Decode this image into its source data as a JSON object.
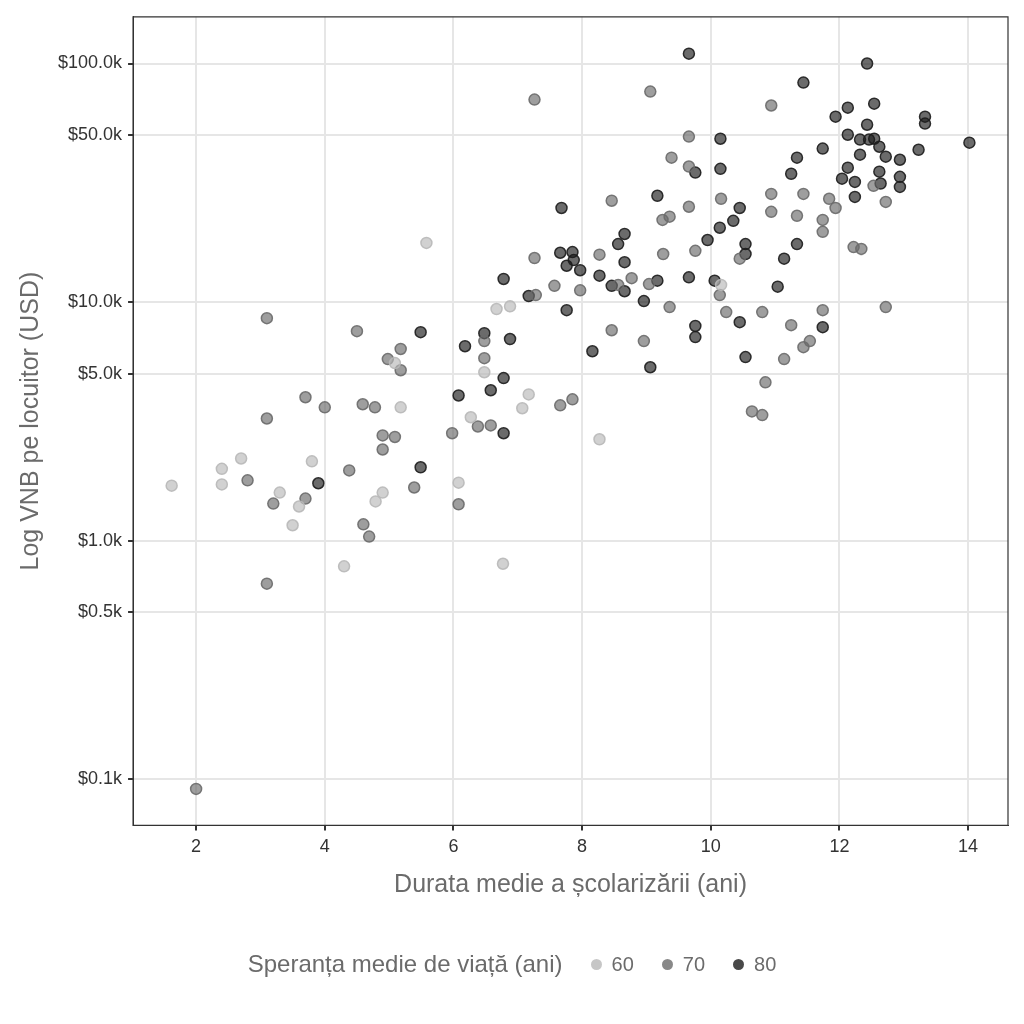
{
  "chart_data": {
    "type": "scatter",
    "xlabel": "Durata medie a școlarizării (ani)",
    "ylabel": "Log VNB pe locuitor (USD)",
    "legend_title": "Speranța medie de viață (ani)",
    "legend": "bottom",
    "grid": true,
    "marker": "circle",
    "log": "y",
    "xlim": [
      1.02,
      14.62
    ],
    "xticks": [
      2,
      4,
      6,
      8,
      10,
      12,
      14
    ],
    "ylim": [
      64,
      157000
    ],
    "yticks": [
      {
        "value": 100,
        "label": "$0.1k"
      },
      {
        "value": 500,
        "label": "$0.5k"
      },
      {
        "value": 1000,
        "label": "$1.0k"
      },
      {
        "value": 5000,
        "label": "$5.0k"
      },
      {
        "value": 10000,
        "label": "$10.0k"
      },
      {
        "value": 50000,
        "label": "$50.0k"
      },
      {
        "value": 100000,
        "label": "$100.0k"
      }
    ],
    "series": [
      {
        "name": "60",
        "color": "#b8b8b8",
        "x": [
          1.62,
          2.4,
          2.4,
          2.7,
          3.3,
          3.5,
          3.6,
          3.8,
          4.3,
          5.58,
          5.09,
          5.18,
          4.9,
          4.79,
          6.08,
          6.77,
          6.48,
          6.67,
          6.88,
          7.17,
          7.07,
          6.27,
          8.27,
          10.16
        ],
        "values": [
          1700,
          2000,
          1720,
          2210,
          1590,
          1160,
          1390,
          2150,
          780,
          17700,
          5550,
          3620,
          1590,
          1460,
          1750,
          800,
          5080,
          9350,
          9600,
          4100,
          3590,
          3290,
          2660,
          11800
        ]
      },
      {
        "name": "70",
        "color": "#6a6a6a",
        "x": [
          2.0,
          2.8,
          3.1,
          3.1,
          3.1,
          3.2,
          3.7,
          3.7,
          4.0,
          4.38,
          4.5,
          4.6,
          4.69,
          4.59,
          4.78,
          5.18,
          4.98,
          5.18,
          5.98,
          4.9,
          5.09,
          4.9,
          5.39,
          6.08,
          6.48,
          6.48,
          7.66,
          7.85,
          6.38,
          6.58,
          10.64,
          10.8,
          7.26,
          8.27,
          9.26,
          9.76,
          10.45,
          8.56,
          8.77,
          9.04,
          10.14,
          7.57,
          7.97,
          7.28,
          9.36,
          10.24,
          10.8,
          8.46,
          8.96,
          9.66,
          9.25,
          9.36,
          7.26,
          9.06,
          10.94,
          9.66,
          9.39,
          9.66,
          10.16,
          10.94,
          10.94,
          11.44,
          11.34,
          11.84,
          11.94,
          12.72,
          11.74,
          11.74,
          12.22,
          12.34,
          11.74,
          11.25,
          12.72,
          11.54,
          11.44,
          11.14,
          10.85,
          12.53,
          8.46
        ],
        "values": [
          91,
          1790,
          8560,
          3250,
          660,
          1430,
          1500,
          3990,
          3620,
          1970,
          7550,
          1170,
          1040,
          3730,
          3620,
          6360,
          5770,
          5180,
          2820,
          2760,
          2720,
          2410,
          1670,
          1420,
          6860,
          5820,
          3690,
          3910,
          3010,
          3040,
          3480,
          3360,
          15300,
          15800,
          15900,
          16400,
          15200,
          11800,
          12600,
          11900,
          10700,
          11700,
          11200,
          10700,
          9530,
          9080,
          9080,
          7620,
          6860,
          25100,
          22100,
          22800,
          70600,
          76300,
          66700,
          49400,
          40300,
          37000,
          27100,
          28400,
          23900,
          28400,
          23000,
          27100,
          24800,
          26300,
          22100,
          19700,
          17000,
          16700,
          9250,
          8000,
          9530,
          6860,
          6470,
          5770,
          4610,
          30700,
          26600
        ]
      },
      {
        "name": "80",
        "color": "#1c1c1c",
        "x": [
          3.9,
          5.49,
          6.08,
          5.49,
          7.68,
          10.45,
          10.35,
          10.14,
          8.66,
          8.56,
          9.95,
          10.54,
          10.54,
          7.66,
          7.85,
          7.87,
          8.66,
          6.78,
          7.76,
          7.97,
          8.27,
          8.46,
          8.66,
          9.17,
          9.66,
          10.06,
          7.17,
          8.96,
          7.76,
          10.45,
          9.76,
          9.76,
          6.48,
          6.18,
          6.88,
          8.16,
          9.06,
          10.54,
          6.78,
          6.58,
          6.78,
          9.66,
          12.43,
          11.44,
          12.13,
          12.54,
          11.94,
          12.43,
          13.33,
          13.33,
          10.15,
          12.13,
          12.32,
          12.46,
          12.54,
          12.62,
          12.72,
          14.02,
          13.23,
          12.94,
          11.74,
          12.32,
          11.34,
          9.76,
          10.15,
          11.25,
          12.13,
          12.62,
          12.04,
          12.24,
          12.94,
          12.94,
          12.64,
          12.24,
          11.34,
          11.14,
          11.04,
          11.74,
          9.17
        ],
        "values": [
          1740,
          7480,
          4060,
          2030,
          24800,
          24800,
          21900,
          20500,
          19300,
          17500,
          18200,
          17500,
          15900,
          16100,
          16200,
          15000,
          14700,
          12500,
          14200,
          13600,
          12900,
          11700,
          11100,
          12300,
          12700,
          12300,
          10600,
          10100,
          9250,
          8240,
          7940,
          7130,
          7410,
          6530,
          7000,
          6220,
          5330,
          5880,
          4800,
          4270,
          2820,
          110000,
          100000,
          83200,
          65300,
          67900,
          59900,
          55400,
          59900,
          56000,
          48400,
          50300,
          48000,
          48000,
          48400,
          44800,
          40700,
          46600,
          43500,
          39500,
          44000,
          41500,
          40300,
          34900,
          36200,
          34500,
          36600,
          35200,
          32900,
          31900,
          33500,
          30400,
          31400,
          27600,
          17500,
          15200,
          11600,
          7850,
          27900
        ]
      }
    ]
  }
}
